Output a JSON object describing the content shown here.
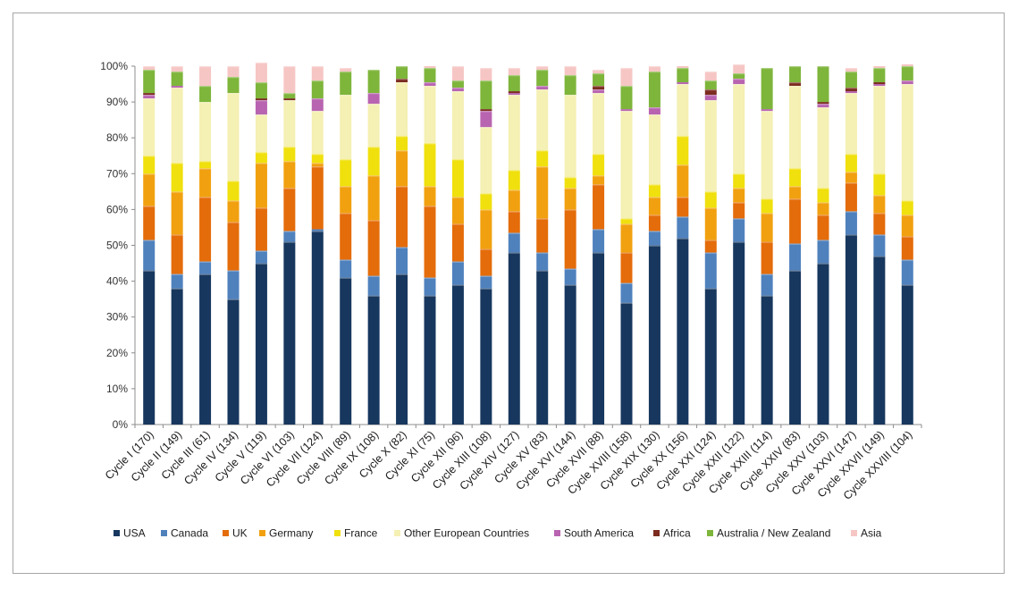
{
  "chart_data": {
    "type": "bar",
    "stacked": true,
    "percent": true,
    "title": "",
    "xlabel": "",
    "ylabel": "",
    "ylim": [
      0,
      100
    ],
    "yticks": [
      "0%",
      "10%",
      "20%",
      "30%",
      "40%",
      "50%",
      "60%",
      "70%",
      "80%",
      "90%",
      "100%"
    ],
    "grid": false,
    "legend_position": "bottom",
    "categories": [
      "Cycle I (170)",
      "Cycle II (149)",
      "Cycle III (61)",
      "Cycle IV (134)",
      "Cycle V (119)",
      "Cycle VI (103)",
      "Cycle VII (124)",
      "Cycle VIII (89)",
      "Cycle IX (108)",
      "Cycle X (82)",
      "Cycle XI (75)",
      "Cycle XII (96)",
      "Cycle XIII (108)",
      "Cycle XIV (127)",
      "Cycle XV (83)",
      "Cycle XVI (144)",
      "Cycle XVII (88)",
      "Cycle XVIII (158)",
      "Cycle XIX (130)",
      "Cycle XX (156)",
      "Cycle XXI (124)",
      "Cycle XXII (122)",
      "Cycle XXIII (114)",
      "Cycle XXIV (83)",
      "Cycle XXV (103)",
      "Cycle XXVI (147)",
      "Cycle XXVII (149)",
      "Cycle XXVIII (104)"
    ],
    "series": [
      {
        "name": "USA",
        "color": "#17375e",
        "values": [
          43,
          38,
          42,
          35,
          45,
          51,
          54,
          41,
          36,
          42,
          36,
          39,
          38,
          48,
          43,
          39,
          48,
          34,
          50,
          52,
          38,
          51,
          36,
          43,
          45,
          53,
          47,
          39
        ]
      },
      {
        "name": "Canada",
        "color": "#4f81bd",
        "values": [
          8.5,
          4,
          3.5,
          8,
          3.5,
          3,
          0.5,
          5,
          5.5,
          7.5,
          5,
          6.5,
          3.5,
          5.5,
          5,
          4.5,
          6.5,
          5.5,
          4,
          6,
          10,
          6.5,
          6,
          7.5,
          6.5,
          6.5,
          6,
          7
        ]
      },
      {
        "name": "UK",
        "color": "#e46c0a",
        "values": [
          9.5,
          11,
          18,
          13.5,
          12,
          12,
          17.5,
          13,
          15.5,
          17,
          20,
          10.5,
          7.5,
          6,
          9.5,
          16.5,
          12.5,
          8.5,
          4.5,
          5.5,
          3.5,
          4.5,
          9,
          12.5,
          7,
          8,
          6,
          6.5
        ]
      },
      {
        "name": "Germany",
        "color": "#f1a10f",
        "values": [
          9,
          12,
          8,
          6,
          12.5,
          7.5,
          1,
          7.5,
          12.5,
          10,
          5.5,
          7.5,
          11,
          6,
          14.5,
          6,
          2.5,
          8,
          5,
          9,
          9,
          4,
          8,
          3.5,
          3.5,
          3,
          5,
          6
        ]
      },
      {
        "name": "France",
        "color": "#f0e00d",
        "values": [
          5,
          8,
          2,
          5.5,
          3,
          4,
          2.5,
          7.5,
          8,
          4,
          12,
          10.5,
          4.5,
          5.5,
          4.5,
          3,
          6,
          1.5,
          3.5,
          8,
          4.5,
          4,
          4,
          5,
          4,
          5,
          6,
          4
        ]
      },
      {
        "name": "Other European Countries",
        "color": "#f5f0b3",
        "values": [
          16,
          21,
          16.5,
          24.5,
          10.5,
          13,
          12,
          18,
          12,
          15,
          16,
          19,
          18.5,
          21,
          17,
          23,
          17,
          30,
          19.5,
          14.5,
          25.5,
          25,
          24.5,
          23,
          22.5,
          17,
          24.5,
          32.5
        ]
      },
      {
        "name": "South America",
        "color": "#b864b1",
        "values": [
          1,
          0.5,
          0,
          0,
          4,
          0,
          3.5,
          0,
          3,
          0,
          1,
          1,
          4.5,
          0.5,
          1,
          0,
          1,
          0.5,
          2,
          0.5,
          1.5,
          1.5,
          0.5,
          0,
          1,
          0.5,
          0.5,
          1
        ]
      },
      {
        "name": "Africa",
        "color": "#7b2c1f",
        "values": [
          0.5,
          0,
          0,
          0,
          0.5,
          0.5,
          0,
          0,
          0,
          1,
          0,
          0,
          0.5,
          0.5,
          0,
          0,
          1,
          0,
          0,
          0,
          1.5,
          0,
          0,
          1,
          0.5,
          1,
          0.5,
          0
        ]
      },
      {
        "name": "Australia / New Zealand",
        "color": "#7eb53b",
        "values": [
          6.5,
          4,
          4.5,
          4.5,
          4.5,
          1.5,
          5,
          6.5,
          6.5,
          3.5,
          4,
          2,
          8,
          4.5,
          4.5,
          5.5,
          3.5,
          6.5,
          10,
          4,
          2.5,
          1.5,
          11.5,
          4.5,
          10,
          4.5,
          4,
          4
        ]
      },
      {
        "name": "Asia",
        "color": "#f6c6c4",
        "values": [
          1,
          1.5,
          5.5,
          3,
          5.5,
          7.5,
          4,
          1,
          0,
          0,
          0.5,
          4,
          3.5,
          2,
          1,
          2.5,
          1,
          5,
          1.5,
          0.5,
          2.5,
          2.5,
          0,
          0,
          0,
          1,
          0.5,
          0.5
        ]
      }
    ]
  }
}
